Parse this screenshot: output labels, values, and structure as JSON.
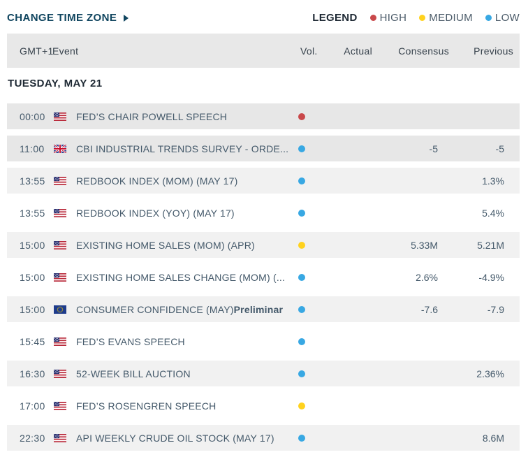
{
  "toolbar": {
    "change_time_zone_label": "CHANGE TIME ZONE",
    "legend": {
      "label": "LEGEND",
      "items": [
        {
          "name": "HIGH",
          "level": "high",
          "color": "#c9484a"
        },
        {
          "name": "MEDIUM",
          "level": "medium",
          "color": "#ffd21e"
        },
        {
          "name": "LOW",
          "level": "low",
          "color": "#38a8e3"
        }
      ]
    }
  },
  "volatility_colors": {
    "high": "#c9484a",
    "medium": "#ffd21e",
    "low": "#38a8e3"
  },
  "table": {
    "columns": [
      "GMT+1",
      "Event",
      "Vol.",
      "Actual",
      "Consensus",
      "Previous"
    ],
    "section": "TUESDAY, MAY 21",
    "rows": [
      {
        "time": "00:00",
        "country": "us",
        "event": "FED’S CHAIR POWELL SPEECH",
        "event_suffix": "",
        "vol": "high",
        "actual": "",
        "consensus": "",
        "previous": "",
        "shade": "dark"
      },
      {
        "time": "11:00",
        "country": "gb",
        "event": "CBI INDUSTRIAL TRENDS SURVEY - ORDE...",
        "event_suffix": "",
        "vol": "low",
        "actual": "",
        "consensus": "-5",
        "previous": "-5",
        "shade": "dark"
      },
      {
        "time": "13:55",
        "country": "us",
        "event": "REDBOOK INDEX (MOM) (MAY 17)",
        "event_suffix": "",
        "vol": "low",
        "actual": "",
        "consensus": "",
        "previous": "1.3%",
        "shade": "light"
      },
      {
        "time": "13:55",
        "country": "us",
        "event": "REDBOOK INDEX (YOY) (MAY 17)",
        "event_suffix": "",
        "vol": "low",
        "actual": "",
        "consensus": "",
        "previous": "5.4%",
        "shade": "white"
      },
      {
        "time": "15:00",
        "country": "us",
        "event": "EXISTING HOME SALES (MOM) (APR)",
        "event_suffix": "",
        "vol": "medium",
        "actual": "",
        "consensus": "5.33M",
        "previous": "5.21M",
        "shade": "light"
      },
      {
        "time": "15:00",
        "country": "us",
        "event": "EXISTING HOME SALES CHANGE (MOM) (...",
        "event_suffix": "",
        "vol": "low",
        "actual": "",
        "consensus": "2.6%",
        "previous": "-4.9%",
        "shade": "white"
      },
      {
        "time": "15:00",
        "country": "eu",
        "event": "CONSUMER CONFIDENCE (MAY)",
        "event_suffix": "Preliminar",
        "vol": "low",
        "actual": "",
        "consensus": "-7.6",
        "previous": "-7.9",
        "shade": "light"
      },
      {
        "time": "15:45",
        "country": "us",
        "event": "FED’S EVANS SPEECH",
        "event_suffix": "",
        "vol": "low",
        "actual": "",
        "consensus": "",
        "previous": "",
        "shade": "white"
      },
      {
        "time": "16:30",
        "country": "us",
        "event": "52-WEEK BILL AUCTION",
        "event_suffix": "",
        "vol": "low",
        "actual": "",
        "consensus": "",
        "previous": "2.36%",
        "shade": "light"
      },
      {
        "time": "17:00",
        "country": "us",
        "event": "FED’S ROSENGREN SPEECH",
        "event_suffix": "",
        "vol": "medium",
        "actual": "",
        "consensus": "",
        "previous": "",
        "shade": "white"
      },
      {
        "time": "22:30",
        "country": "us",
        "event": "API WEEKLY CRUDE OIL STOCK (MAY 17)",
        "event_suffix": "",
        "vol": "low",
        "actual": "",
        "consensus": "",
        "previous": "8.6M",
        "shade": "light"
      }
    ]
  }
}
